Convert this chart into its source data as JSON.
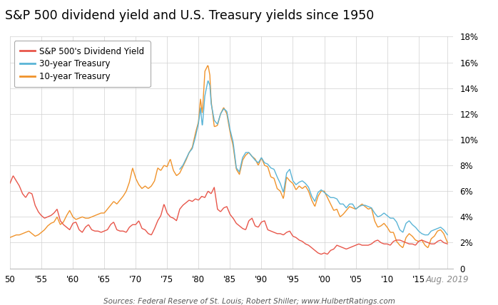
{
  "title": "S&P 500 dividend yield and U.S. Treasury yields since 1950",
  "source_text": "Sources: Federal Reserve of St. Louis; Robert Shiller; www.HulbertRatings.com",
  "legend_labels": [
    "S&P 500's Dividend Yield",
    "30-year Treasury",
    "10-year Treasury"
  ],
  "colors": {
    "sp500": "#e8564a",
    "t30": "#5ab4d6",
    "t10": "#f0932b"
  },
  "ylim": [
    0,
    18
  ],
  "yticks": [
    0,
    2,
    4,
    6,
    8,
    10,
    12,
    14,
    16,
    18
  ],
  "background_color": "#ffffff",
  "grid_color": "#d0d0d0",
  "title_fontsize": 12.5,
  "axis_fontsize": 9,
  "source_fontsize": 8,
  "sp500_data": {
    "years": [
      1950.0,
      1950.5,
      1951.0,
      1951.5,
      1952.0,
      1952.5,
      1953.0,
      1953.5,
      1954.0,
      1954.5,
      1955.0,
      1955.5,
      1956.0,
      1956.5,
      1957.0,
      1957.5,
      1958.0,
      1958.5,
      1959.0,
      1959.5,
      1960.0,
      1960.5,
      1961.0,
      1961.5,
      1962.0,
      1962.5,
      1963.0,
      1963.5,
      1964.0,
      1964.5,
      1965.0,
      1965.5,
      1966.0,
      1966.5,
      1967.0,
      1967.5,
      1968.0,
      1968.5,
      1969.0,
      1969.5,
      1970.0,
      1970.5,
      1971.0,
      1971.5,
      1972.0,
      1972.5,
      1973.0,
      1973.5,
      1974.0,
      1974.5,
      1975.0,
      1975.5,
      1976.0,
      1976.5,
      1977.0,
      1977.5,
      1978.0,
      1978.5,
      1979.0,
      1979.5,
      1980.0,
      1980.5,
      1981.0,
      1981.5,
      1982.0,
      1982.5,
      1983.0,
      1983.5,
      1984.0,
      1984.5,
      1985.0,
      1985.5,
      1986.0,
      1986.5,
      1987.0,
      1987.5,
      1988.0,
      1988.5,
      1989.0,
      1989.5,
      1990.0,
      1990.5,
      1991.0,
      1991.5,
      1992.0,
      1992.5,
      1993.0,
      1993.5,
      1994.0,
      1994.5,
      1995.0,
      1995.5,
      1996.0,
      1996.5,
      1997.0,
      1997.5,
      1998.0,
      1998.5,
      1999.0,
      1999.5,
      2000.0,
      2000.5,
      2001.0,
      2001.5,
      2002.0,
      2002.5,
      2003.0,
      2003.5,
      2004.0,
      2004.5,
      2005.0,
      2005.5,
      2006.0,
      2006.5,
      2007.0,
      2007.5,
      2008.0,
      2008.5,
      2009.0,
      2009.5,
      2010.0,
      2010.5,
      2011.0,
      2011.5,
      2012.0,
      2012.5,
      2013.0,
      2013.5,
      2014.0,
      2014.5,
      2015.0,
      2015.5,
      2016.0,
      2016.5,
      2017.0,
      2017.5,
      2018.0,
      2018.5,
      2019.0,
      2019.6
    ],
    "values": [
      6.6,
      7.2,
      6.8,
      6.4,
      5.8,
      5.5,
      5.9,
      5.8,
      4.9,
      4.4,
      4.1,
      3.9,
      4.0,
      4.1,
      4.3,
      4.6,
      3.7,
      3.4,
      3.2,
      3.0,
      3.5,
      3.6,
      3.0,
      2.8,
      3.2,
      3.4,
      3.0,
      2.9,
      2.9,
      2.8,
      2.9,
      3.0,
      3.4,
      3.6,
      3.0,
      2.9,
      2.9,
      2.8,
      3.2,
      3.4,
      3.4,
      3.7,
      3.1,
      3.0,
      2.7,
      2.6,
      3.1,
      3.7,
      4.1,
      5.0,
      4.3,
      4.0,
      3.9,
      3.7,
      4.6,
      4.9,
      5.1,
      5.3,
      5.2,
      5.4,
      5.3,
      5.6,
      5.5,
      6.0,
      5.8,
      6.3,
      4.6,
      4.4,
      4.7,
      4.8,
      4.2,
      3.9,
      3.5,
      3.3,
      3.1,
      3.0,
      3.7,
      3.9,
      3.3,
      3.2,
      3.6,
      3.7,
      3.0,
      2.9,
      2.8,
      2.7,
      2.7,
      2.6,
      2.8,
      2.9,
      2.5,
      2.4,
      2.2,
      2.1,
      1.9,
      1.8,
      1.6,
      1.4,
      1.2,
      1.1,
      1.2,
      1.1,
      1.4,
      1.5,
      1.8,
      1.7,
      1.6,
      1.5,
      1.6,
      1.7,
      1.8,
      1.9,
      1.8,
      1.8,
      1.8,
      1.9,
      2.1,
      2.2,
      2.0,
      1.9,
      1.9,
      1.8,
      2.1,
      2.2,
      2.2,
      2.1,
      2.0,
      1.9,
      1.9,
      1.8,
      2.1,
      2.2,
      2.1,
      2.0,
      1.9,
      1.9,
      2.1,
      2.2,
      2.0,
      1.9
    ]
  },
  "t10_data": {
    "years": [
      1950.0,
      1950.5,
      1951.0,
      1951.5,
      1952.0,
      1952.5,
      1953.0,
      1953.5,
      1954.0,
      1954.5,
      1955.0,
      1955.5,
      1956.0,
      1956.5,
      1957.0,
      1957.5,
      1958.0,
      1958.5,
      1959.0,
      1959.5,
      1960.0,
      1960.5,
      1961.0,
      1961.5,
      1962.0,
      1962.5,
      1963.0,
      1963.5,
      1964.0,
      1964.5,
      1965.0,
      1965.5,
      1966.0,
      1966.5,
      1967.0,
      1967.5,
      1968.0,
      1968.5,
      1969.0,
      1969.5,
      1970.0,
      1970.5,
      1971.0,
      1971.5,
      1972.0,
      1972.5,
      1973.0,
      1973.5,
      1974.0,
      1974.5,
      1975.0,
      1975.5,
      1976.0,
      1976.5,
      1977.0,
      1977.5,
      1978.0,
      1978.5,
      1979.0,
      1979.5,
      1980.0,
      1980.3,
      1980.6,
      1981.0,
      1981.5,
      1981.8,
      1982.0,
      1982.5,
      1983.0,
      1983.5,
      1984.0,
      1984.5,
      1985.0,
      1985.5,
      1986.0,
      1986.5,
      1987.0,
      1987.5,
      1988.0,
      1988.5,
      1989.0,
      1989.5,
      1990.0,
      1990.5,
      1991.0,
      1991.5,
      1992.0,
      1992.5,
      1993.0,
      1993.5,
      1994.0,
      1994.5,
      1995.0,
      1995.5,
      1996.0,
      1996.5,
      1997.0,
      1997.5,
      1998.0,
      1998.5,
      1999.0,
      1999.5,
      2000.0,
      2000.5,
      2001.0,
      2001.5,
      2002.0,
      2002.5,
      2003.0,
      2003.5,
      2004.0,
      2004.5,
      2005.0,
      2005.5,
      2006.0,
      2006.5,
      2007.0,
      2007.5,
      2008.0,
      2008.5,
      2009.0,
      2009.5,
      2010.0,
      2010.5,
      2011.0,
      2011.5,
      2012.0,
      2012.5,
      2013.0,
      2013.5,
      2014.0,
      2014.5,
      2015.0,
      2015.5,
      2016.0,
      2016.5,
      2017.0,
      2017.5,
      2018.0,
      2018.5,
      2019.0,
      2019.6
    ],
    "values": [
      2.4,
      2.5,
      2.6,
      2.6,
      2.7,
      2.8,
      2.9,
      2.7,
      2.5,
      2.6,
      2.8,
      3.0,
      3.3,
      3.5,
      3.6,
      4.0,
      3.4,
      3.6,
      4.1,
      4.5,
      4.0,
      3.8,
      3.9,
      4.0,
      3.9,
      3.9,
      4.0,
      4.1,
      4.2,
      4.3,
      4.3,
      4.6,
      4.9,
      5.2,
      5.0,
      5.3,
      5.6,
      6.0,
      6.7,
      7.8,
      7.0,
      6.5,
      6.2,
      6.4,
      6.2,
      6.4,
      6.8,
      7.8,
      7.6,
      8.0,
      7.9,
      8.5,
      7.6,
      7.2,
      7.4,
      7.9,
      8.4,
      9.0,
      9.4,
      10.5,
      11.4,
      13.2,
      12.0,
      15.3,
      15.8,
      15.0,
      13.0,
      11.0,
      11.1,
      12.0,
      12.5,
      12.0,
      10.6,
      9.5,
      7.7,
      7.3,
      8.4,
      8.8,
      9.0,
      8.7,
      8.5,
      8.0,
      8.6,
      8.0,
      7.9,
      7.1,
      7.0,
      6.2,
      6.0,
      5.4,
      7.1,
      6.8,
      6.6,
      6.1,
      6.4,
      6.2,
      6.4,
      6.0,
      5.3,
      4.8,
      5.6,
      6.0,
      6.0,
      5.5,
      5.0,
      4.5,
      4.6,
      4.0,
      4.2,
      4.5,
      4.8,
      4.7,
      4.6,
      4.8,
      5.0,
      4.8,
      4.6,
      4.7,
      3.7,
      3.2,
      3.3,
      3.5,
      3.2,
      2.8,
      2.8,
      2.1,
      1.8,
      1.6,
      2.4,
      2.7,
      2.5,
      2.2,
      2.1,
      2.2,
      1.8,
      1.6,
      2.3,
      2.5,
      2.9,
      3.0,
      2.7,
      2.0
    ]
  },
  "t30_data": {
    "years": [
      1977.0,
      1977.5,
      1978.0,
      1978.5,
      1979.0,
      1979.5,
      1980.0,
      1980.3,
      1980.6,
      1981.0,
      1981.5,
      1981.8,
      1982.0,
      1982.5,
      1983.0,
      1983.5,
      1984.0,
      1984.5,
      1985.0,
      1985.5,
      1986.0,
      1986.5,
      1987.0,
      1987.5,
      1988.0,
      1988.5,
      1989.0,
      1989.5,
      1990.0,
      1990.5,
      1991.0,
      1991.5,
      1992.0,
      1992.5,
      1993.0,
      1993.5,
      1994.0,
      1994.5,
      1995.0,
      1995.5,
      1996.0,
      1996.5,
      1997.0,
      1997.5,
      1998.0,
      1998.5,
      1999.0,
      1999.5,
      2000.0,
      2000.5,
      2001.0,
      2001.5,
      2002.0,
      2002.5,
      2003.0,
      2003.5,
      2004.0,
      2004.5,
      2005.0,
      2005.5,
      2006.0,
      2006.5,
      2007.0,
      2007.5,
      2008.0,
      2008.5,
      2009.0,
      2009.5,
      2010.0,
      2010.5,
      2011.0,
      2011.5,
      2012.0,
      2012.5,
      2013.0,
      2013.5,
      2014.0,
      2014.5,
      2015.0,
      2015.5,
      2016.0,
      2016.5,
      2017.0,
      2017.5,
      2018.0,
      2018.5,
      2019.0,
      2019.6
    ],
    "values": [
      7.7,
      8.0,
      8.5,
      9.0,
      9.3,
      10.2,
      11.3,
      12.5,
      11.0,
      13.4,
      14.6,
      14.2,
      12.8,
      11.5,
      11.2,
      12.0,
      12.4,
      12.2,
      10.8,
      9.8,
      7.8,
      7.5,
      8.6,
      9.0,
      9.0,
      8.7,
      8.4,
      8.2,
      8.6,
      8.2,
      8.1,
      7.8,
      7.7,
      7.1,
      6.6,
      5.9,
      7.4,
      7.7,
      6.8,
      6.5,
      6.7,
      6.8,
      6.6,
      6.3,
      5.6,
      5.2,
      5.9,
      6.1,
      5.9,
      5.7,
      5.5,
      5.5,
      5.4,
      5.0,
      5.0,
      4.7,
      5.0,
      5.0,
      4.6,
      4.8,
      4.9,
      4.9,
      4.8,
      4.7,
      4.3,
      4.0,
      4.1,
      4.3,
      4.1,
      3.9,
      3.9,
      3.6,
      3.0,
      2.8,
      3.5,
      3.7,
      3.4,
      3.2,
      2.9,
      2.7,
      2.6,
      2.6,
      2.9,
      3.0,
      3.1,
      3.2,
      3.0,
      2.6
    ]
  },
  "xticks": [
    1950,
    1955,
    1960,
    1965,
    1970,
    1975,
    1980,
    1985,
    1990,
    1995,
    2000,
    2005,
    2010,
    2015,
    2019.6
  ],
  "xticklabels": [
    "50",
    "'55",
    "'60",
    "'65",
    "'70",
    "'75",
    "'80",
    "'85",
    "'90",
    "'95",
    "'00",
    "'05",
    "'10",
    "'15",
    "Aug. 2019"
  ]
}
